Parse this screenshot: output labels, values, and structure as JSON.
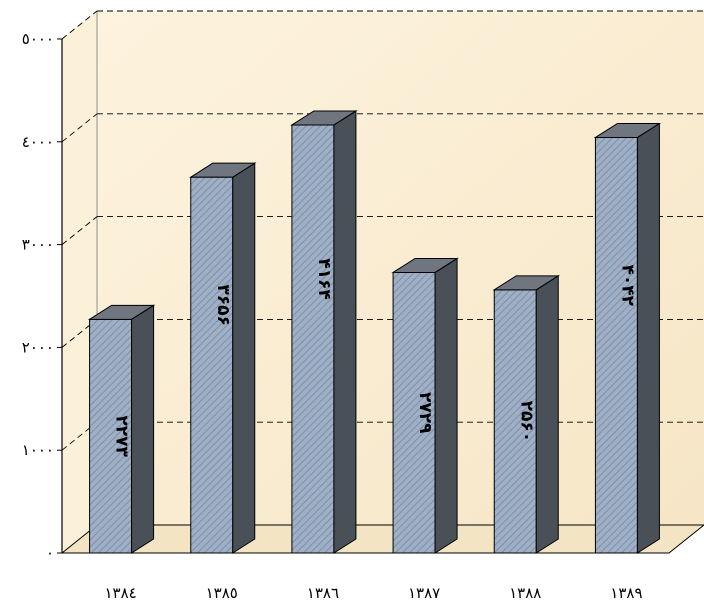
{
  "chart_data": {
    "type": "bar",
    "style": "3d",
    "categories": [
      "۱۳۸٤",
      "۱۳۸٥",
      "۱۳۸٦",
      "۱۳۸۷",
      "۱۳۸۸",
      "۱۳۸۹"
    ],
    "values": [
      2273,
      3656,
      4164,
      2729,
      2560,
      4042
    ],
    "data_labels": [
      "۲۲۷۳",
      "۳۶۵۶",
      "۴۱۶۴",
      "۲۷۲۹",
      "۲۵۶۰",
      "۴۰۴۲"
    ],
    "y_ticks": [
      0,
      1000,
      2000,
      3000,
      4000,
      5000
    ],
    "y_tick_labels": [
      "۰",
      "۱۰۰۰",
      "۲۰۰۰",
      "۳۰۰۰",
      "٤۰۰۰",
      "٥۰۰۰"
    ],
    "ylim": [
      0,
      5000
    ],
    "grid": true,
    "legend": "none",
    "colors": {
      "bar_front": "#9fb0c6",
      "bar_hatch": "#7e8ea6",
      "bar_side": "#4a5058",
      "bar_top": "#6f7680",
      "wall": "#fbf0d8",
      "floor": "#f3e4c4",
      "grid": "#000000"
    }
  }
}
